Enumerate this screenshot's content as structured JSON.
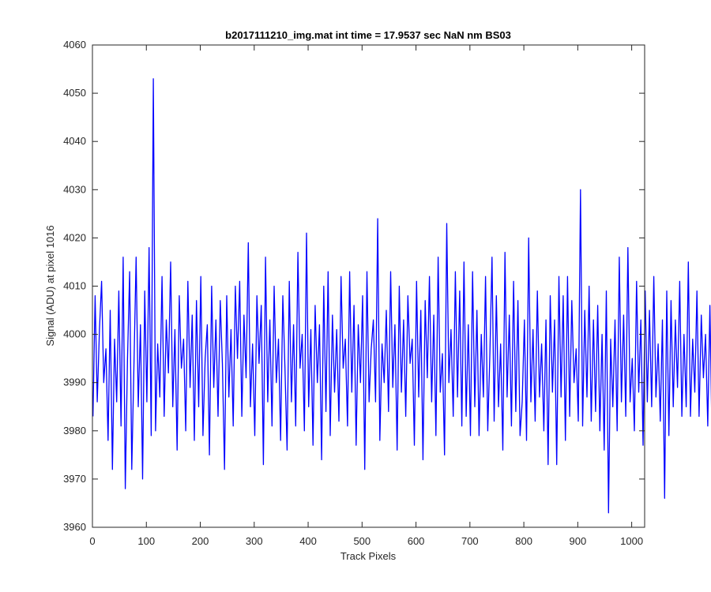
{
  "chart_data": {
    "type": "line",
    "title": "b2017111210_img.mat int time = 17.9537 sec  NaN nm BS03",
    "xlabel": "Track Pixels",
    "ylabel": "Signal (ADU) at pixel 1016",
    "xlim": [
      0,
      1024
    ],
    "ylim": [
      3960,
      4060
    ],
    "xticks": [
      "0",
      "100",
      "200",
      "300",
      "400",
      "500",
      "600",
      "700",
      "800",
      "900",
      "1000"
    ],
    "yticks": [
      "3960",
      "3970",
      "3980",
      "3990",
      "4000",
      "4010",
      "4020",
      "4030",
      "4040",
      "4050",
      "4060"
    ],
    "grid": false,
    "series": [
      {
        "color": "#0000ff",
        "x_start": 1,
        "x_step": 4,
        "values": [
          3983,
          4008,
          3986,
          4001,
          4011,
          3990,
          3997,
          3978,
          4005,
          3972,
          3999,
          3986,
          4009,
          3981,
          4016,
          3968,
          3995,
          4013,
          3972,
          3994,
          4016,
          3985,
          4002,
          3970,
          4009,
          3986,
          4018,
          3979,
          4053,
          3980,
          3998,
          3987,
          4012,
          3983,
          4003,
          3992,
          4015,
          3985,
          4001,
          3976,
          4008,
          3993,
          3999,
          3980,
          4011,
          3989,
          4004,
          3978,
          4007,
          3985,
          4012,
          3979,
          3995,
          4002,
          3975,
          4010,
          3989,
          4003,
          3983,
          4007,
          3994,
          3972,
          4008,
          3987,
          4001,
          3981,
          4010,
          3995,
          4011,
          3983,
          4004,
          3991,
          4019,
          3985,
          3998,
          3979,
          4008,
          3994,
          4006,
          3973,
          4016,
          3986,
          4003,
          3981,
          4010,
          3990,
          3999,
          3978,
          4008,
          3993,
          3976,
          4011,
          3986,
          4002,
          3981,
          4017,
          3993,
          4000,
          3980,
          4021,
          3985,
          4001,
          3977,
          4006,
          3990,
          4002,
          3974,
          4010,
          3984,
          4013,
          3979,
          4004,
          3988,
          4001,
          3982,
          4012,
          3993,
          3999,
          3981,
          4013,
          3988,
          4006,
          3977,
          4002,
          3990,
          4008,
          3972,
          4013,
          3986,
          3997,
          4003,
          3986,
          4024,
          3978,
          3998,
          3990,
          4005,
          3984,
          4013,
          3989,
          4002,
          3976,
          4010,
          3988,
          4003,
          3983,
          4008,
          3994,
          3999,
          3977,
          4011,
          3987,
          4005,
          3974,
          4007,
          3991,
          4012,
          3986,
          4004,
          3979,
          4016,
          3988,
          3996,
          3975,
          4023,
          3990,
          4001,
          3983,
          4013,
          3987,
          4009,
          3981,
          4015,
          3983,
          4002,
          3979,
          4013,
          3985,
          4005,
          3979,
          4000,
          3987,
          4012,
          3980,
          3996,
          4016,
          3982,
          4008,
          3985,
          3998,
          3976,
          4017,
          3987,
          4004,
          3981,
          4011,
          3984,
          4007,
          3979,
          3986,
          4003,
          3978,
          4020,
          3986,
          4001,
          3982,
          4009,
          3987,
          3998,
          3980,
          4003,
          3973,
          4008,
          3988,
          4003,
          3973,
          4012,
          3987,
          4008,
          3978,
          4012,
          3983,
          4007,
          3990,
          3997,
          3982,
          4030,
          3981,
          4005,
          3987,
          4010,
          3982,
          4003,
          3984,
          4006,
          3980,
          4000,
          3976,
          4009,
          3963,
          3999,
          3985,
          4003,
          3980,
          4016,
          3986,
          4004,
          3983,
          4018,
          3986,
          3995,
          3980,
          4011,
          3988,
          4003,
          3977,
          4009,
          3986,
          4005,
          3985,
          4012,
          3987,
          3998,
          3982,
          4003,
          3966,
          4009,
          3979,
          4007,
          3985,
          4003,
          3989,
          4011,
          3983,
          4000,
          3985,
          4015,
          3983,
          3999,
          3988,
          4009,
          3983,
          4004,
          3991,
          4000,
          3981,
          4006,
          3978,
          4012,
          3993,
          4003,
          3985,
          4015,
          3990,
          4008,
          3975,
          4010,
          3986,
          3996,
          3982,
          4009,
          3997,
          3977,
          4007,
          3994,
          4008,
          3977,
          4001,
          3990,
          3988,
          4003,
          3992,
          4010,
          3983,
          4010,
          3986,
          4015
        ]
      }
    ]
  }
}
